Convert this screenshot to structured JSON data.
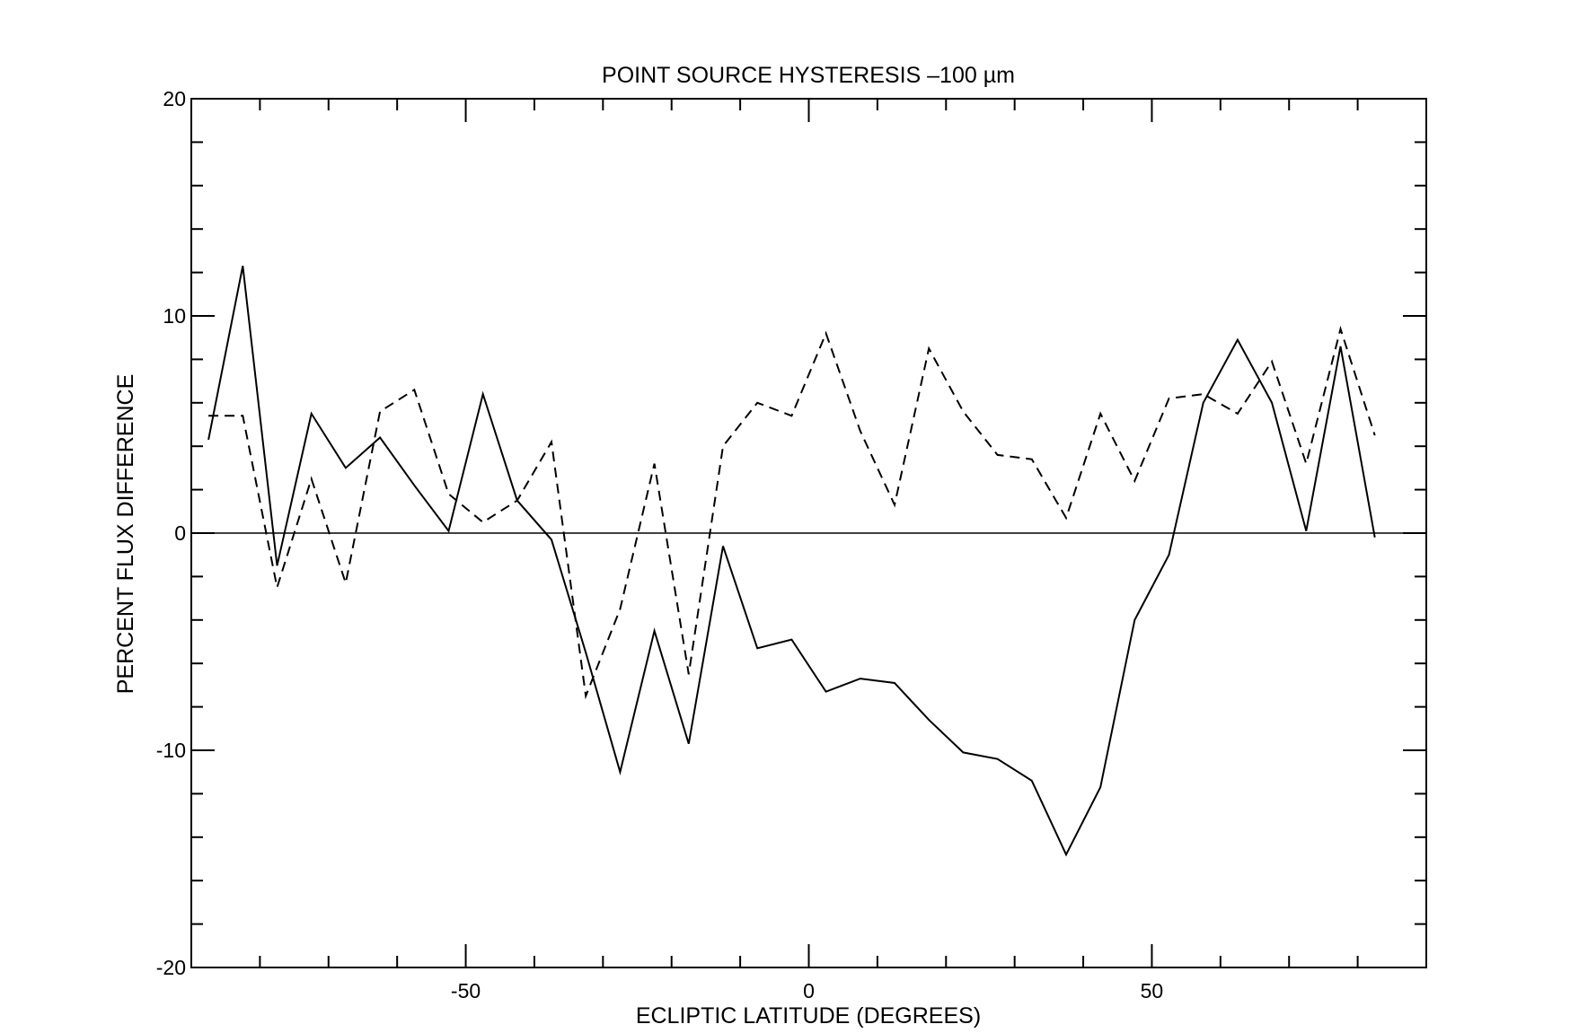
{
  "chart_data": {
    "type": "line",
    "title": "POINT SOURCE HYSTERESIS –100 µm",
    "xlabel": "ECLIPTIC LATITUDE (DEGREES)",
    "ylabel": "PERCENT FLUX DIFFERENCE",
    "xlim": [
      -90,
      90
    ],
    "ylim": [
      -20,
      20
    ],
    "xticks": [
      -50,
      0,
      50
    ],
    "xtick_labels": [
      "-50",
      "0",
      "50"
    ],
    "yticks": [
      20,
      10,
      0,
      -10,
      -20
    ],
    "ytick_labels": [
      "20",
      "10",
      "0",
      "-10",
      "-20"
    ],
    "x_minor_step": 10,
    "y_minor_step": 2,
    "grid": false,
    "reference_line_y": 0,
    "series": [
      {
        "style": "solid",
        "color": "#000000",
        "points": [
          [
            -87.5,
            4.3
          ],
          [
            -82.5,
            12.3
          ],
          [
            -77.5,
            -1.5
          ],
          [
            -72.5,
            5.5
          ],
          [
            -67.5,
            3.0
          ],
          [
            -62.5,
            4.4
          ],
          [
            -57.5,
            2.2
          ],
          [
            -52.5,
            0.1
          ],
          [
            -47.5,
            6.4
          ],
          [
            -42.5,
            1.5
          ],
          [
            -37.5,
            -0.3
          ],
          [
            -32.5,
            -5.5
          ],
          [
            -27.5,
            -11.0
          ],
          [
            -22.5,
            -4.5
          ],
          [
            -17.5,
            -9.7
          ],
          [
            -12.5,
            -0.6
          ],
          [
            -7.5,
            -5.3
          ],
          [
            -2.5,
            -4.9
          ],
          [
            2.5,
            -7.3
          ],
          [
            7.5,
            -6.7
          ],
          [
            12.5,
            -6.9
          ],
          [
            17.5,
            -8.6
          ],
          [
            22.5,
            -10.1
          ],
          [
            27.5,
            -10.4
          ],
          [
            32.5,
            -11.4
          ],
          [
            37.5,
            -14.8
          ],
          [
            42.5,
            -11.7
          ],
          [
            47.5,
            -4.0
          ],
          [
            52.5,
            -1.0
          ],
          [
            57.5,
            6.0
          ],
          [
            62.5,
            8.9
          ],
          [
            67.5,
            6.0
          ],
          [
            72.5,
            0.1
          ],
          [
            77.5,
            8.6
          ],
          [
            82.5,
            -0.2
          ]
        ]
      },
      {
        "style": "dashed",
        "color": "#000000",
        "points": [
          [
            -87.5,
            5.4
          ],
          [
            -82.5,
            5.4
          ],
          [
            -77.5,
            -2.5
          ],
          [
            -72.5,
            2.5
          ],
          [
            -67.5,
            -2.3
          ],
          [
            -62.5,
            5.6
          ],
          [
            -57.5,
            6.6
          ],
          [
            -52.5,
            1.8
          ],
          [
            -47.5,
            0.5
          ],
          [
            -42.5,
            1.5
          ],
          [
            -37.5,
            4.2
          ],
          [
            -32.5,
            -7.5
          ],
          [
            -27.5,
            -3.5
          ],
          [
            -22.5,
            3.2
          ],
          [
            -17.5,
            -6.5
          ],
          [
            -12.5,
            4.0
          ],
          [
            -7.5,
            6.0
          ],
          [
            -2.5,
            5.4
          ],
          [
            2.5,
            9.2
          ],
          [
            7.5,
            4.7
          ],
          [
            12.5,
            1.3
          ],
          [
            17.5,
            8.5
          ],
          [
            22.5,
            5.6
          ],
          [
            27.5,
            3.6
          ],
          [
            32.5,
            3.4
          ],
          [
            37.5,
            0.7
          ],
          [
            42.5,
            5.5
          ],
          [
            47.5,
            2.4
          ],
          [
            52.5,
            6.2
          ],
          [
            57.5,
            6.4
          ],
          [
            62.5,
            5.5
          ],
          [
            67.5,
            7.9
          ],
          [
            72.5,
            3.2
          ],
          [
            77.5,
            9.4
          ],
          [
            82.5,
            4.5
          ]
        ]
      }
    ]
  }
}
